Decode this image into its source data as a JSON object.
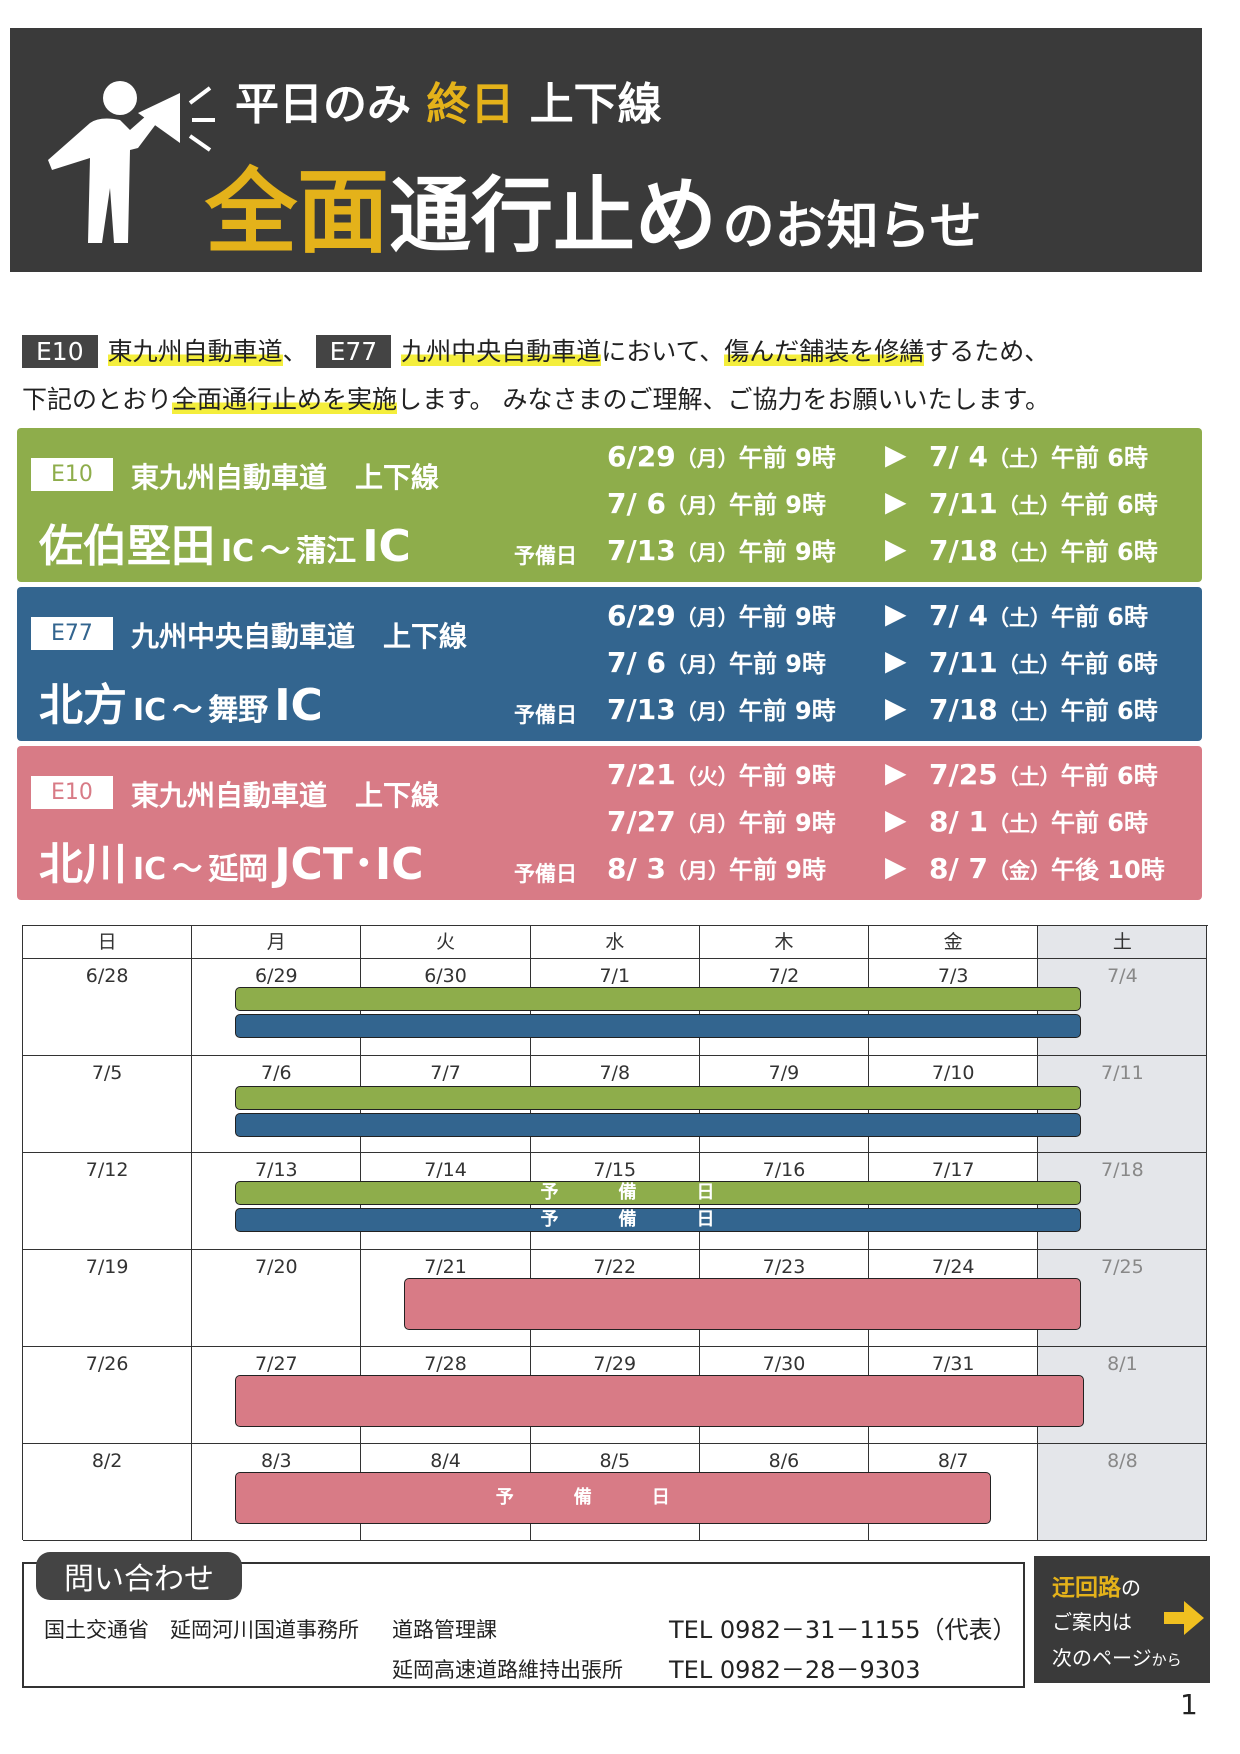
{
  "header": {
    "line1": [
      "平日のみ",
      "終日",
      "上下線"
    ],
    "line2": [
      "全面",
      "通行止め",
      "のお知らせ"
    ]
  },
  "intro": {
    "badge1": "E10",
    "road1": "東九州自動車道",
    "sep": "、",
    "badge2": "E77",
    "road2": "九州中央自動車道",
    "text1": "において、",
    "mark1": "傷んだ舗装を修繕",
    "text2": "するため、",
    "text3": "下記のとおり",
    "mark2": "全面通行止めを実施",
    "text4": "します。 みなさまのご理解、ご協力をお願いいたします。"
  },
  "sections": [
    {
      "code": "E10",
      "road": "東九州自動車道　上下線",
      "route": [
        "佐伯堅田",
        "IC",
        "～",
        "蒲江",
        "IC"
      ],
      "rows": [
        {
          "start": {
            "date": "6/29",
            "day": "（月）",
            "time": "午前 9時"
          },
          "end": {
            "date": "7/ 4",
            "day": "（土）",
            "time": "午前 6時"
          }
        },
        {
          "start": {
            "date": "7/ 6",
            "day": "（月）",
            "time": "午前 9時"
          },
          "end": {
            "date": "7/11",
            "day": "（土）",
            "time": "午前 6時"
          }
        },
        {
          "label": "予備日",
          "start": {
            "date": "7/13",
            "day": "（月）",
            "time": "午前 9時"
          },
          "end": {
            "date": "7/18",
            "day": "（土）",
            "time": "午前 6時"
          }
        }
      ]
    },
    {
      "code": "E77",
      "road": "九州中央自動車道　上下線",
      "route": [
        "北方",
        "IC",
        "～",
        "舞野",
        "IC"
      ],
      "rows": [
        {
          "start": {
            "date": "6/29",
            "day": "（月）",
            "time": "午前 9時"
          },
          "end": {
            "date": "7/ 4",
            "day": "（土）",
            "time": "午前 6時"
          }
        },
        {
          "start": {
            "date": "7/ 6",
            "day": "（月）",
            "time": "午前 9時"
          },
          "end": {
            "date": "7/11",
            "day": "（土）",
            "time": "午前 6時"
          }
        },
        {
          "label": "予備日",
          "start": {
            "date": "7/13",
            "day": "（月）",
            "time": "午前 9時"
          },
          "end": {
            "date": "7/18",
            "day": "（土）",
            "time": "午前 6時"
          }
        }
      ]
    },
    {
      "code": "E10",
      "road": "東九州自動車道　上下線",
      "route": [
        "北川",
        "IC",
        "～",
        "延岡",
        "JCT･IC"
      ],
      "rows": [
        {
          "start": {
            "date": "7/21",
            "day": "（火）",
            "time": "午前 9時"
          },
          "end": {
            "date": "7/25",
            "day": "（土）",
            "time": "午前 6時"
          }
        },
        {
          "start": {
            "date": "7/27",
            "day": "（月）",
            "time": "午前 9時"
          },
          "end": {
            "date": "8/ 1",
            "day": "（土）",
            "time": "午前 6時"
          }
        },
        {
          "label": "予備日",
          "start": {
            "date": "8/ 3",
            "day": "（月）",
            "time": "午前 9時"
          },
          "end": {
            "date": "8/ 7",
            "day": "（金）",
            "time": "午後 10時"
          }
        }
      ]
    }
  ],
  "calendar": {
    "weekdays": [
      "日",
      "月",
      "火",
      "水",
      "木",
      "金",
      "土"
    ],
    "weeks": [
      [
        "6/28",
        "6/29",
        "6/30",
        "7/1",
        "7/2",
        "7/3",
        "7/4"
      ],
      [
        "7/5",
        "7/6",
        "7/7",
        "7/8",
        "7/9",
        "7/10",
        "7/11"
      ],
      [
        "7/12",
        "7/13",
        "7/14",
        "7/15",
        "7/16",
        "7/17",
        "7/18"
      ],
      [
        "7/19",
        "7/20",
        "7/21",
        "7/22",
        "7/23",
        "7/24",
        "7/25"
      ],
      [
        "7/26",
        "7/27",
        "7/28",
        "7/29",
        "7/30",
        "7/31",
        "8/1"
      ],
      [
        "8/2",
        "8/3",
        "8/4",
        "8/5",
        "8/6",
        "8/7",
        "8/8"
      ]
    ],
    "reserve_label": "予備日"
  },
  "contact": {
    "title": "問い合わせ",
    "org": "国土交通省　延岡河川国道事務所",
    "dept1": "道路管理課",
    "tel1": "TEL  0982－31－1155（代表）",
    "dept2": "延岡高速道路維持出張所",
    "tel2": "TEL  0982－28－9303"
  },
  "detour": {
    "word": "迂回路",
    "particle": "の",
    "line2": "ご案内は",
    "line3": "次のページ",
    "suffix": "から"
  },
  "page_number": "1"
}
